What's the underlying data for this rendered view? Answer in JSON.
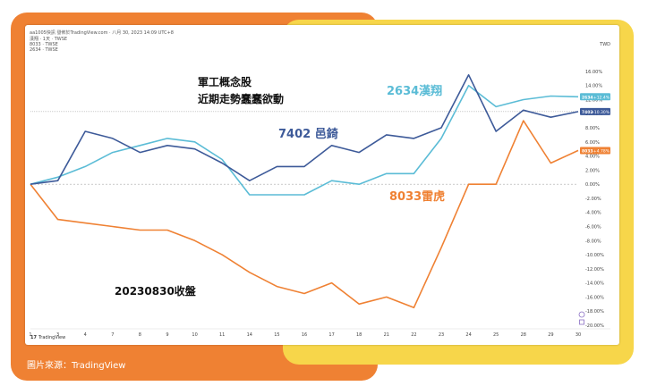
{
  "header": {
    "line1": "aa1005快訊 發佈於TradingView.com · 八月 30, 2023 14:09 UTC+8",
    "line2": "漢翔 · 1天 · TWSE",
    "line3": "8033 · TWSE",
    "line4": "2634 · TWSE",
    "currency": "TWD"
  },
  "annotations": {
    "title_line1": "軍工概念股",
    "title_line2": "近期走勢蠢蠢欲動",
    "date_note": "20230830收盤",
    "label_2634": "2634漢翔",
    "label_7402": "7402 邑錡",
    "label_8033": "8033雷虎"
  },
  "badges": [
    {
      "code": "2634",
      "text": "+12.4%",
      "color": "#5bbcd6"
    },
    {
      "code": "7402",
      "text": "+10.30%",
      "color": "#3d5a99"
    },
    {
      "code": "8033",
      "text": "+4.78%",
      "color": "#ef8133"
    }
  ],
  "footer": {
    "brand_logo": "17",
    "brand_name": "TradingView",
    "source": "圖片來源：TradingView"
  },
  "colors": {
    "series_2634": "#5bbcd6",
    "series_7402": "#3d5a99",
    "series_8033": "#ef8133",
    "frame_orange": "#ef8133",
    "frame_yellow": "#f7d64a"
  },
  "chart_data": {
    "type": "line",
    "title": "",
    "xlabel": "",
    "ylabel": "",
    "ylim": [
      -20,
      17
    ],
    "grid": false,
    "legend": "right-edge badges",
    "x": [
      "1",
      "3",
      "4",
      "7",
      "8",
      "9",
      "10",
      "11",
      "14",
      "15",
      "16",
      "17",
      "18",
      "21",
      "22",
      "23",
      "24",
      "25",
      "28",
      "29",
      "30"
    ],
    "yticks": [
      16,
      14,
      12,
      10,
      8,
      6,
      4,
      2,
      0,
      -2,
      -4,
      -6,
      -8,
      -10,
      -12,
      -14,
      -16,
      -18,
      -20
    ],
    "series": [
      {
        "name": "7402",
        "values": [
          0,
          0.5,
          7.5,
          6.5,
          4.5,
          5.5,
          5,
          3,
          0.5,
          2.5,
          2.5,
          5.5,
          4.5,
          7,
          6.5,
          8,
          15.5,
          7.5,
          10.5,
          9.5,
          10.3
        ]
      },
      {
        "name": "2634",
        "values": [
          0,
          1,
          2.5,
          4.5,
          5.5,
          6.5,
          6,
          3.5,
          -1.5,
          -1.5,
          -1.5,
          0.5,
          0,
          1.5,
          1.5,
          6.5,
          14,
          11,
          12,
          12.5,
          12.4
        ]
      },
      {
        "name": "8033",
        "values": [
          0,
          -5,
          -5.5,
          -6,
          -6.5,
          -6.5,
          -8,
          -10,
          -12.5,
          -14.5,
          -15.5,
          -14,
          -17,
          -16,
          -17.5,
          -9,
          0,
          0,
          9,
          3,
          4.78
        ]
      }
    ]
  }
}
